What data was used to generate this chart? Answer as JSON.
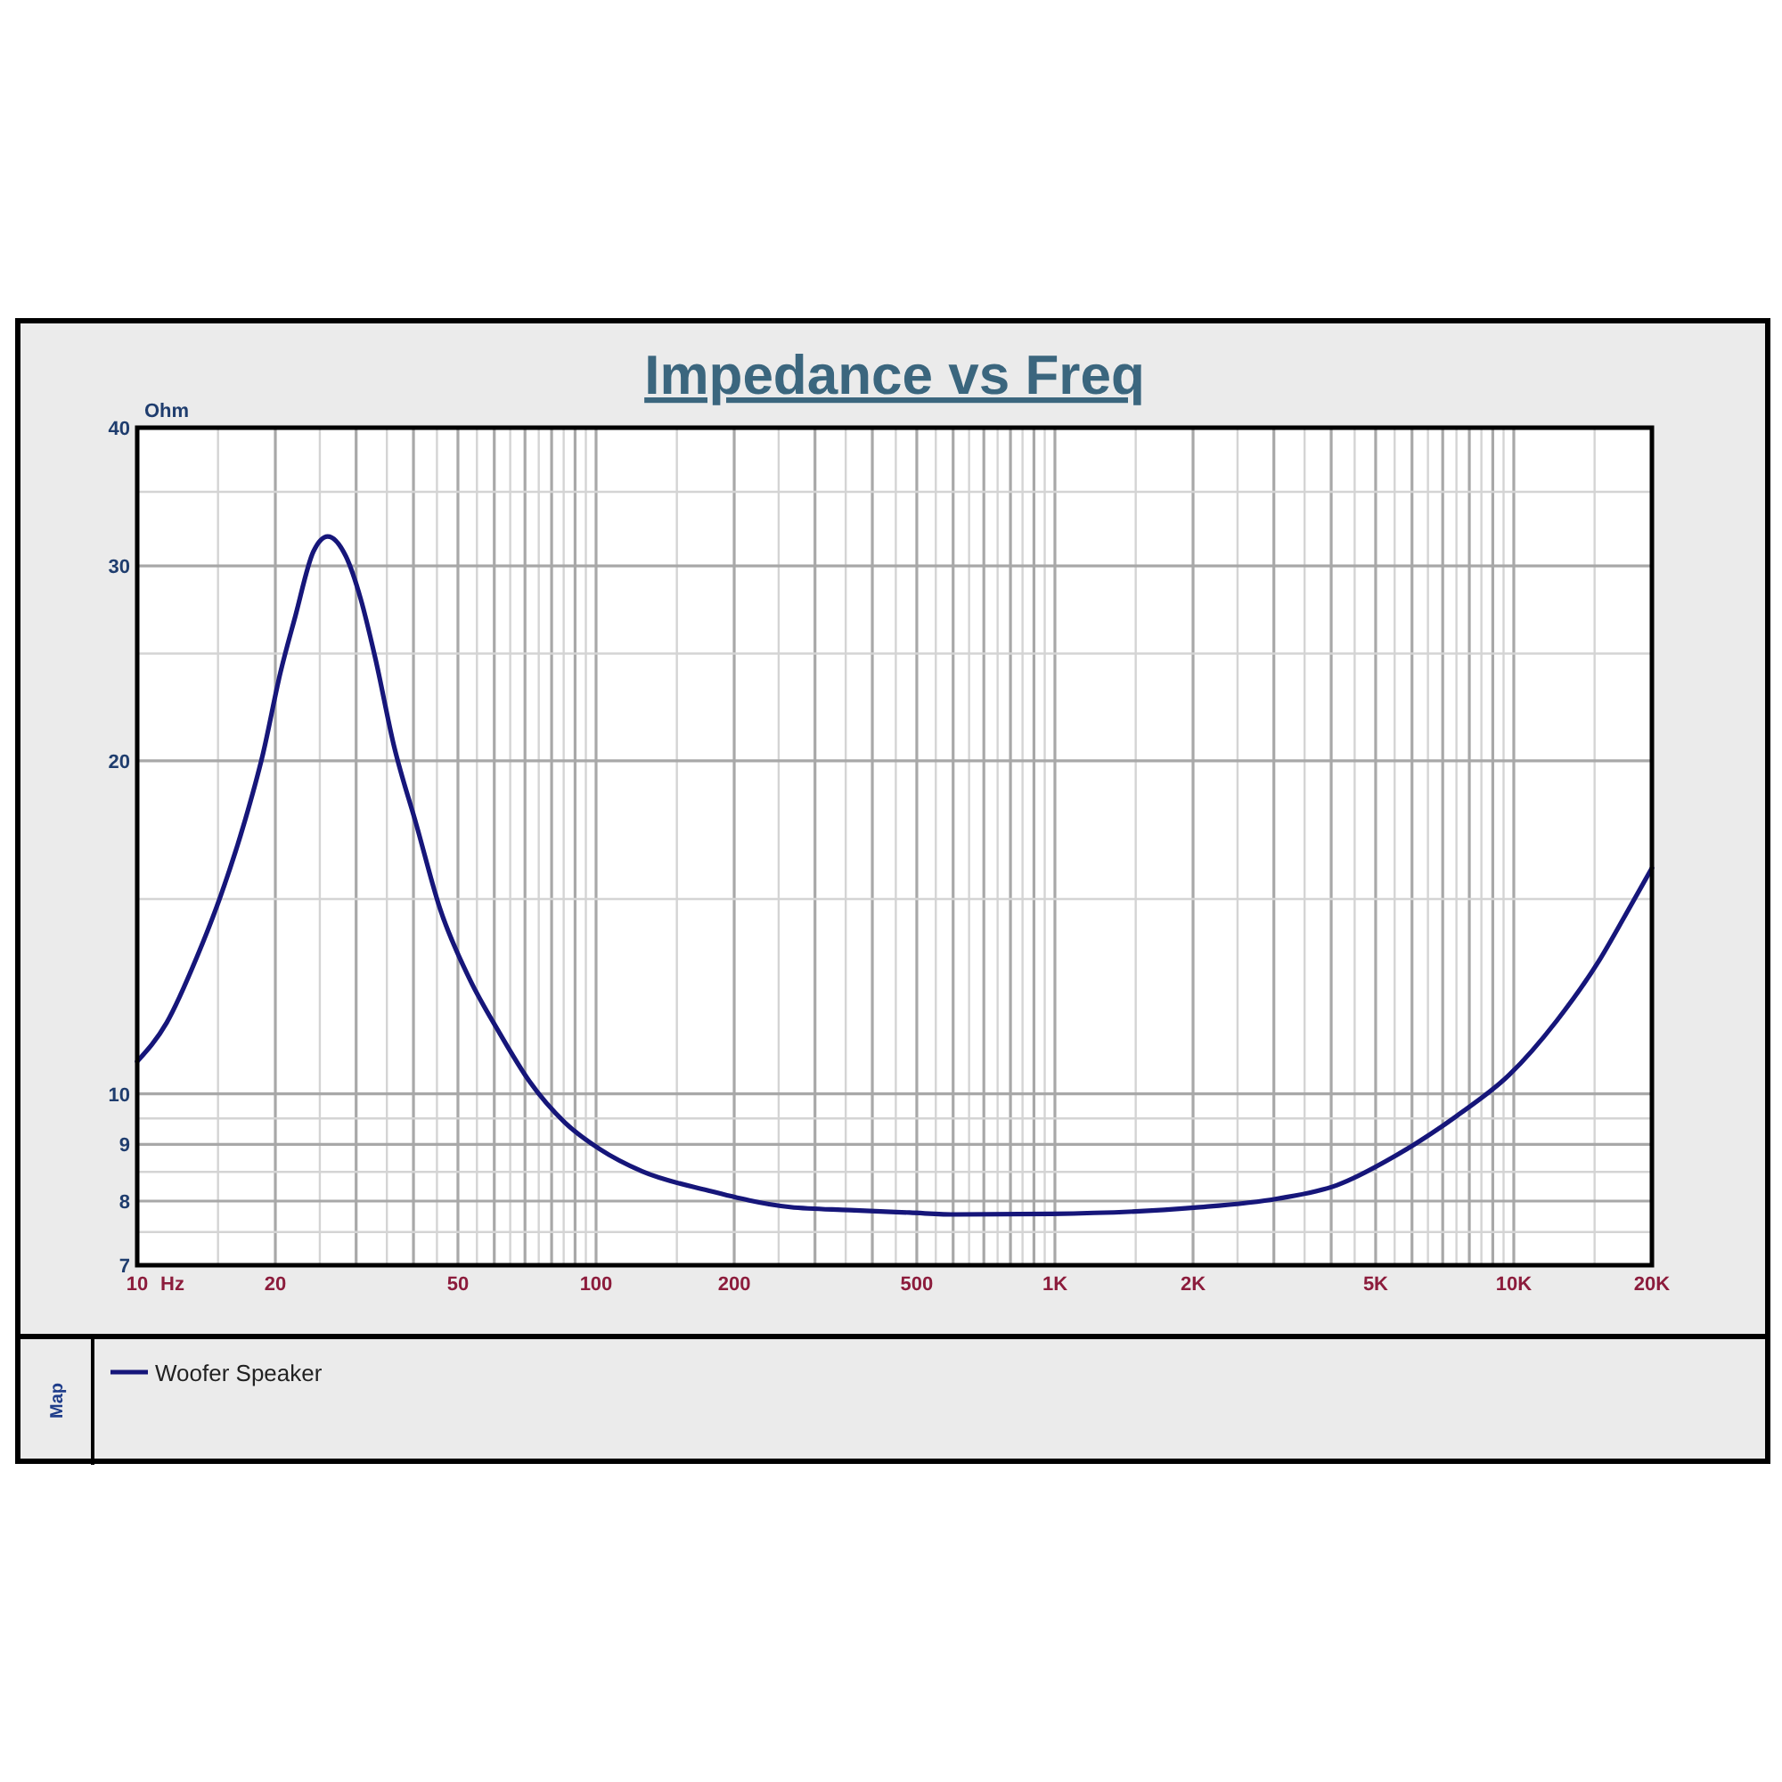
{
  "chart_data": {
    "type": "line",
    "title": "Impedance vs Freq",
    "xlabel": "Hz",
    "ylabel": "Ohm",
    "legend_title": "Map",
    "log": "xy",
    "grid": true,
    "legend": "bottom",
    "line_style": "solid",
    "xlim": [
      10,
      20000
    ],
    "ylim": [
      7,
      40
    ],
    "xticks": [
      10,
      {
        "value": 15,
        "label": null
      },
      20,
      {
        "value": 25,
        "label": null
      },
      {
        "value": 30,
        "label": null
      },
      {
        "value": 35,
        "label": null
      },
      {
        "value": 40,
        "label": null
      },
      {
        "value": 45,
        "label": null
      },
      50,
      {
        "value": 55,
        "label": null
      },
      {
        "value": 60,
        "label": null
      },
      {
        "value": 65,
        "label": null
      },
      {
        "value": 70,
        "label": null
      },
      {
        "value": 75,
        "label": null
      },
      {
        "value": 80,
        "label": null
      },
      {
        "value": 85,
        "label": null
      },
      {
        "value": 90,
        "label": null
      },
      {
        "value": 95,
        "label": null
      },
      100,
      {
        "value": 150,
        "label": null
      },
      200,
      {
        "value": 250,
        "label": null
      },
      {
        "value": 300,
        "label": null
      },
      {
        "value": 350,
        "label": null
      },
      {
        "value": 400,
        "label": null
      },
      {
        "value": 450,
        "label": null
      },
      500,
      {
        "value": 550,
        "label": null
      },
      {
        "value": 600,
        "label": null
      },
      {
        "value": 650,
        "label": null
      },
      {
        "value": 700,
        "label": null
      },
      {
        "value": 750,
        "label": null
      },
      {
        "value": 800,
        "label": null
      },
      {
        "value": 850,
        "label": null
      },
      {
        "value": 900,
        "label": null
      },
      {
        "value": 950,
        "label": null
      },
      {
        "value": 1000,
        "label": "1K"
      },
      {
        "value": 1500,
        "label": null
      },
      {
        "value": 2000,
        "label": "2K"
      },
      {
        "value": 2500,
        "label": null
      },
      {
        "value": 3000,
        "label": null
      },
      {
        "value": 3500,
        "label": null
      },
      {
        "value": 4000,
        "label": null
      },
      {
        "value": 4500,
        "label": null
      },
      {
        "value": 5000,
        "label": "5K"
      },
      {
        "value": 5500,
        "label": null
      },
      {
        "value": 6000,
        "label": null
      },
      {
        "value": 6500,
        "label": null
      },
      {
        "value": 7000,
        "label": null
      },
      {
        "value": 7500,
        "label": null
      },
      {
        "value": 8000,
        "label": null
      },
      {
        "value": 8500,
        "label": null
      },
      {
        "value": 9000,
        "label": null
      },
      {
        "value": 9500,
        "label": null
      },
      {
        "value": 10000,
        "label": "10K"
      },
      {
        "value": 15000,
        "label": null
      },
      {
        "value": 20000,
        "label": "20K"
      }
    ],
    "yticks": [
      7,
      {
        "value": 7.5,
        "label": null
      },
      8,
      {
        "value": 8.5,
        "label": null
      },
      9,
      {
        "value": 9.5,
        "label": null
      },
      10,
      {
        "value": 15,
        "label": null
      },
      20,
      {
        "value": 25,
        "label": null
      },
      30,
      {
        "value": 35,
        "label": null
      },
      40
    ],
    "x": [
      10,
      11.6,
      13.5,
      15.2,
      17.2,
      18.8,
      20.5,
      22.1,
      24.2,
      26,
      28.5,
      30.7,
      33,
      36.3,
      40.6,
      45.7,
      53,
      61.6,
      71.5,
      85.5,
      102,
      126,
      175,
      265,
      357,
      482,
      611,
      985,
      2010,
      3060,
      4120,
      5550,
      7480,
      9770,
      12400,
      15300,
      17500,
      20000
    ],
    "series": [
      {
        "name": "Woofer Speaker",
        "color": "#16167a",
        "values": [
          10.7,
          11.6,
          13.3,
          15.1,
          17.7,
          20.3,
          24.0,
          27.0,
          30.9,
          31.9,
          30.6,
          28.0,
          24.8,
          20.6,
          17.5,
          14.7,
          12.7,
          11.35,
          10.27,
          9.42,
          8.91,
          8.51,
          8.18,
          7.9,
          7.85,
          7.81,
          7.78,
          7.79,
          7.89,
          8.04,
          8.27,
          8.8,
          9.54,
          10.4,
          11.64,
          13.17,
          14.5,
          16.0
        ]
      }
    ]
  }
}
